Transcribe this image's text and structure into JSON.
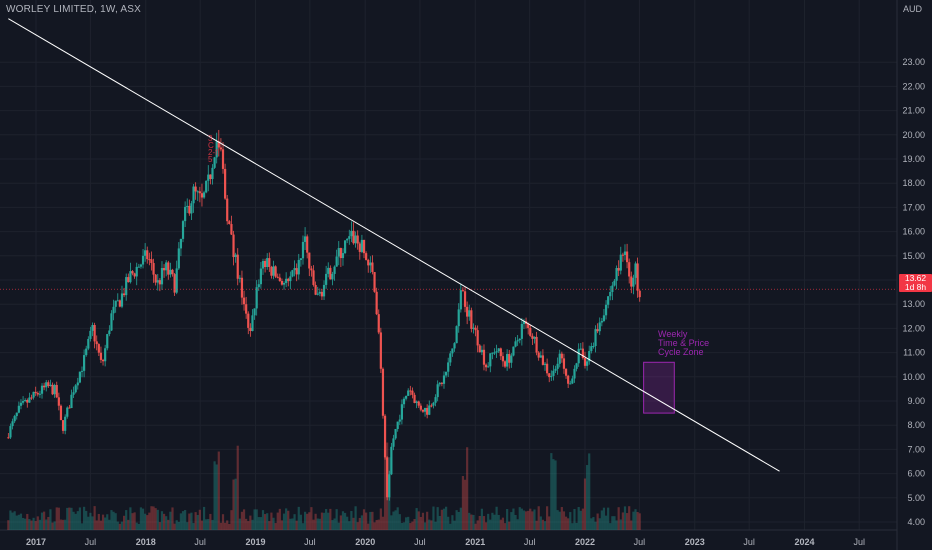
{
  "header": {
    "symbol_line": "WORLEY LIMITED, 1W, ASX",
    "currency": "AUD"
  },
  "price_badge": {
    "price": "13.62",
    "countdown": "1d 8h"
  },
  "zone": {
    "lines": [
      "Weekly",
      "Time & Price",
      "Cycle Zone"
    ],
    "color": "#9c27b0"
  },
  "peak_annotation": {
    "lines": [
      "3",
      "C",
      "2-f",
      "5"
    ]
  },
  "colors": {
    "up": "#26a69a",
    "down": "#ef5350",
    "background": "#131722",
    "grid": "#1e222d",
    "trendline": "#ffffff",
    "axis_text": "#b2b5be"
  },
  "chart_data": {
    "type": "candlestick",
    "title": "WORLEY LIMITED, 1W, ASX",
    "ylabel": "AUD",
    "ylim": [
      3.6,
      24.0
    ],
    "xlim": [
      "2016-10-01",
      "2025-10-01"
    ],
    "grid": true,
    "y_ticks": [
      "4.00",
      "5.00",
      "6.00",
      "7.00",
      "8.00",
      "9.00",
      "10.00",
      "11.00",
      "12.00",
      "13.00",
      "14.00",
      "15.00",
      "16.00",
      "17.00",
      "18.00",
      "19.00",
      "20.00",
      "21.00",
      "22.00",
      "23.00"
    ],
    "x_ticks": [
      {
        "label": "2017",
        "date": "2017-01-01"
      },
      {
        "label": "Jul",
        "date": "2017-07-01"
      },
      {
        "label": "2018",
        "date": "2018-01-01"
      },
      {
        "label": "Jul",
        "date": "2018-07-01"
      },
      {
        "label": "2019",
        "date": "2019-01-01"
      },
      {
        "label": "Jul",
        "date": "2019-07-01"
      },
      {
        "label": "2020",
        "date": "2020-01-01"
      },
      {
        "label": "Jul",
        "date": "2020-07-01"
      },
      {
        "label": "2021",
        "date": "2021-01-01"
      },
      {
        "label": "Jul",
        "date": "2021-07-01"
      },
      {
        "label": "2022",
        "date": "2022-01-01"
      },
      {
        "label": "Jul",
        "date": "2022-07-01"
      },
      {
        "label": "2023",
        "date": "2023-01-01"
      },
      {
        "label": "Jul",
        "date": "2023-07-01"
      },
      {
        "label": "2024",
        "date": "2024-01-01"
      },
      {
        "label": "Jul",
        "date": "2024-07-01"
      }
    ],
    "last_price": 13.62,
    "price_path": [
      [
        "2016-10-01",
        7.5
      ],
      [
        "2016-11-15",
        8.7
      ],
      [
        "2017-01-01",
        9.2
      ],
      [
        "2017-02-15",
        9.6
      ],
      [
        "2017-03-15",
        9.4
      ],
      [
        "2017-04-05",
        7.8
      ],
      [
        "2017-05-15",
        9.6
      ],
      [
        "2017-06-15",
        10.6
      ],
      [
        "2017-07-15",
        12.0
      ],
      [
        "2017-08-15",
        10.4
      ],
      [
        "2017-09-15",
        12.5
      ],
      [
        "2017-10-15",
        13.2
      ],
      [
        "2017-11-15",
        14.1
      ],
      [
        "2017-12-15",
        14.6
      ],
      [
        "2018-01-15",
        15.0
      ],
      [
        "2018-02-15",
        13.8
      ],
      [
        "2018-03-15",
        14.5
      ],
      [
        "2018-04-15",
        13.8
      ],
      [
        "2018-05-15",
        16.5
      ],
      [
        "2018-06-15",
        17.6
      ],
      [
        "2018-07-15",
        17.2
      ],
      [
        "2018-08-05",
        18.0
      ],
      [
        "2018-08-25",
        19.5
      ],
      [
        "2018-09-15",
        19.3
      ],
      [
        "2018-10-01",
        17.2
      ],
      [
        "2018-10-25",
        15.2
      ],
      [
        "2018-11-15",
        14.0
      ],
      [
        "2018-12-01",
        13.0
      ],
      [
        "2018-12-20",
        11.5
      ],
      [
        "2019-01-10",
        13.5
      ],
      [
        "2019-02-01",
        14.8
      ],
      [
        "2019-03-01",
        14.4
      ],
      [
        "2019-04-01",
        14.0
      ],
      [
        "2019-05-01",
        13.8
      ],
      [
        "2019-06-01",
        14.6
      ],
      [
        "2019-06-20",
        15.8
      ],
      [
        "2019-07-10",
        14.2
      ],
      [
        "2019-08-01",
        13.2
      ],
      [
        "2019-09-01",
        14.0
      ],
      [
        "2019-10-01",
        14.8
      ],
      [
        "2019-11-01",
        15.4
      ],
      [
        "2019-12-01",
        15.8
      ],
      [
        "2020-01-01",
        15.2
      ],
      [
        "2020-02-01",
        14.2
      ],
      [
        "2020-02-20",
        12.4
      ],
      [
        "2020-03-10",
        7.8
      ],
      [
        "2020-03-20",
        4.9
      ],
      [
        "2020-04-05",
        7.2
      ],
      [
        "2020-05-01",
        8.4
      ],
      [
        "2020-06-01",
        9.6
      ],
      [
        "2020-07-01",
        8.8
      ],
      [
        "2020-08-01",
        8.6
      ],
      [
        "2020-09-01",
        9.4
      ],
      [
        "2020-10-01",
        10.1
      ],
      [
        "2020-11-01",
        11.5
      ],
      [
        "2020-11-25",
        13.8
      ],
      [
        "2020-12-15",
        12.6
      ],
      [
        "2021-01-15",
        11.6
      ],
      [
        "2021-02-15",
        10.4
      ],
      [
        "2021-03-15",
        11.2
      ],
      [
        "2021-04-15",
        10.6
      ],
      [
        "2021-05-15",
        11.0
      ],
      [
        "2021-06-15",
        12.2
      ],
      [
        "2021-07-15",
        11.8
      ],
      [
        "2021-08-15",
        10.8
      ],
      [
        "2021-09-15",
        10.0
      ],
      [
        "2021-10-15",
        11.0
      ],
      [
        "2021-11-15",
        9.4
      ],
      [
        "2021-12-01",
        10.4
      ],
      [
        "2021-12-20",
        11.0
      ],
      [
        "2022-01-10",
        10.6
      ],
      [
        "2022-02-01",
        11.4
      ],
      [
        "2022-03-01",
        12.4
      ],
      [
        "2022-04-01",
        13.5
      ],
      [
        "2022-05-01",
        14.6
      ],
      [
        "2022-05-25",
        15.4
      ],
      [
        "2022-06-10",
        13.6
      ],
      [
        "2022-06-25",
        14.4
      ],
      [
        "2022-07-05",
        13.62
      ]
    ],
    "trendline": {
      "start": [
        "2016-10-01",
        24.8
      ],
      "end": [
        "2023-10-10",
        6.1
      ],
      "color": "#ffffff"
    },
    "zone_box": {
      "x": [
        "2022-07-15",
        "2022-10-25"
      ],
      "y": [
        8.5,
        10.6
      ]
    },
    "volume": {
      "note": "volume histogram at bottom, relative",
      "spike_dates": [
        "2018-08-25",
        "2018-10-25",
        "2020-03-15",
        "2020-11-25",
        "2021-09-15",
        "2022-01-10"
      ]
    }
  }
}
